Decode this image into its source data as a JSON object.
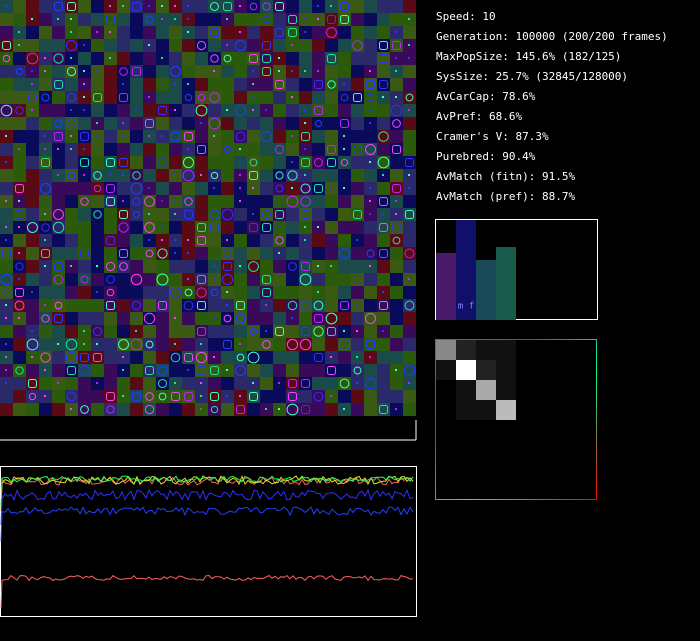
{
  "stats": [
    "Speed: 10",
    "Generation: 100000 (200/200 frames)",
    "MaxPopSize: 145.6% (182/125)",
    "SysSize: 25.7% (32845/128000)",
    "AvCarCap: 78.6%",
    "AvPref: 68.6%",
    "Cramer's V: 87.3%",
    "Purebred: 90.4%",
    "AvMatch (fitn): 91.5%",
    "AvMatch (pref): 88.7%"
  ],
  "histogram": {
    "values": [
      67,
      100,
      60,
      73
    ],
    "colors": [
      "#4a1a6a",
      "#10106a",
      "#1a4a5a",
      "#1a5a4a"
    ],
    "ylim": [
      0,
      100
    ],
    "label": "m f"
  },
  "matrix": {
    "values": [
      [
        136,
        34,
        17,
        17
      ],
      [
        17,
        255,
        34,
        17
      ],
      [
        0,
        17,
        170,
        17
      ],
      [
        0,
        17,
        17,
        187
      ]
    ]
  }
}
